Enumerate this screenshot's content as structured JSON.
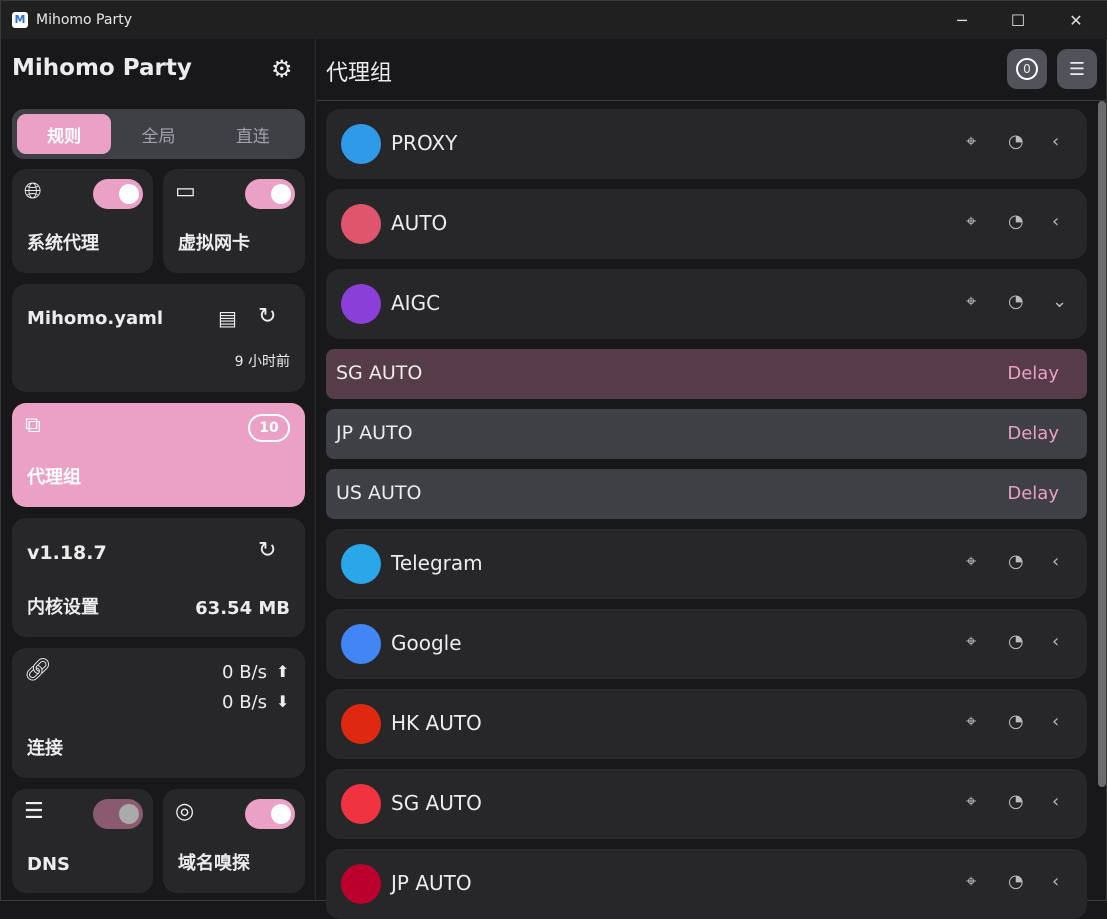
{
  "window": {
    "title": "Mihomo Party",
    "logo": "M",
    "minimize": "─",
    "maximize": "☐",
    "close": "✕"
  },
  "sidebar": {
    "brand": "Mihomo Party",
    "modes": [
      "规则",
      "全局",
      "直连"
    ],
    "sysproxy": {
      "label": "系统代理",
      "on": true
    },
    "tun": {
      "label": "虚拟网卡",
      "on": true
    },
    "profile": {
      "name": "Mihomo.yaml",
      "updated": "9 小时前"
    },
    "proxygroups": {
      "label": "代理组",
      "count": "10"
    },
    "core": {
      "version": "v1.18.7",
      "label": "内核设置",
      "memory": "63.54 MB"
    },
    "connections": {
      "label": "连接",
      "up": "0 B/s",
      "down": "0 B/s"
    },
    "dns": {
      "label": "DNS",
      "on": false
    },
    "sniff": {
      "label": "域名嗅探",
      "on": true
    }
  },
  "main": {
    "title": "代理组",
    "header_badge": "0",
    "accent": "#eba0c5",
    "groups": [
      {
        "name": "PROXY",
        "icon": "proxy-icon",
        "color": "#2f9be8",
        "expanded": false
      },
      {
        "name": "AUTO",
        "icon": "auto-bolt-icon",
        "color": "#e0556b",
        "expanded": false
      },
      {
        "name": "AIGC",
        "icon": "openai-icon",
        "color": "#8b3fd9",
        "expanded": true,
        "proxies": [
          {
            "name": "SG AUTO",
            "delay": "Delay",
            "selected": true
          },
          {
            "name": "JP AUTO",
            "delay": "Delay",
            "selected": false
          },
          {
            "name": "US AUTO",
            "delay": "Delay",
            "selected": false
          }
        ]
      },
      {
        "name": "Telegram",
        "icon": "telegram-icon",
        "color": "#2aa7e8",
        "expanded": false
      },
      {
        "name": "Google",
        "icon": "google-icon",
        "color": "#4285f4",
        "expanded": false
      },
      {
        "name": "HK AUTO",
        "icon": "hk-flag-icon",
        "color": "#de2910",
        "expanded": false
      },
      {
        "name": "SG AUTO",
        "icon": "sg-flag-icon",
        "color": "#ef3340",
        "expanded": false
      },
      {
        "name": "JP AUTO",
        "icon": "jp-flag-icon",
        "color": "#bc002d",
        "expanded": false
      }
    ]
  }
}
